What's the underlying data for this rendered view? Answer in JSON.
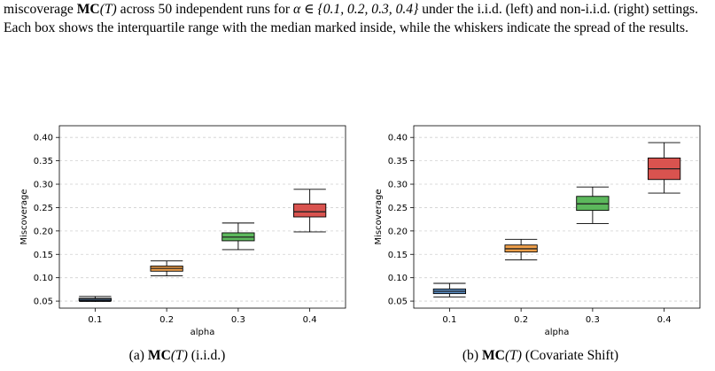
{
  "caption": {
    "part1": "miscoverage ",
    "mc_bold": "MC",
    "mc_arg": "(T)",
    "part2": " across 50 independent runs for ",
    "alpha_set": "α ∈ {0.1, 0.2, 0.3, 0.4}",
    "part3": " under the i.i.d. (left) and non-i.i.d. (right) settings. Each box shows the interquartile range with the median marked inside, while the whiskers indicate the spread of the results."
  },
  "subcaptions": [
    {
      "prefix": "(a) ",
      "bold": "MC",
      "arg": "(T)",
      "suffix": " (i.i.d.)"
    },
    {
      "prefix": "(b) ",
      "bold": "MC",
      "arg": "(T)",
      "suffix": " (Covariate Shift)"
    }
  ],
  "colors": {
    "box_fills": [
      "#5b8fc7",
      "#f0a04b",
      "#5cb85c",
      "#d9534f"
    ],
    "grid": "#d0d0d0",
    "median": "#222222"
  },
  "chart_data": [
    {
      "type": "box",
      "categories": [
        "0.1",
        "0.2",
        "0.3",
        "0.4"
      ],
      "xlabel": "alpha",
      "ylabel": "Miscoverage",
      "ylim": [
        0.035,
        0.425
      ],
      "yticks": [
        "0.05",
        "0.10",
        "0.15",
        "0.20",
        "0.25",
        "0.30",
        "0.35",
        "0.40"
      ],
      "ytick_values": [
        0.05,
        0.1,
        0.15,
        0.2,
        0.25,
        0.3,
        0.35,
        0.4
      ],
      "grid": true,
      "boxes": [
        {
          "min": 0.049,
          "q1": 0.051,
          "median": 0.054,
          "q3": 0.056,
          "max": 0.06
        },
        {
          "min": 0.104,
          "q1": 0.114,
          "median": 0.12,
          "q3": 0.125,
          "max": 0.136
        },
        {
          "min": 0.16,
          "q1": 0.179,
          "median": 0.187,
          "q3": 0.196,
          "max": 0.217
        },
        {
          "min": 0.198,
          "q1": 0.23,
          "median": 0.241,
          "q3": 0.258,
          "max": 0.289
        }
      ]
    },
    {
      "type": "box",
      "categories": [
        "0.1",
        "0.2",
        "0.3",
        "0.4"
      ],
      "xlabel": "alpha",
      "ylabel": "Miscoverage",
      "ylim": [
        0.035,
        0.425
      ],
      "yticks": [
        "0.05",
        "0.10",
        "0.15",
        "0.20",
        "0.25",
        "0.30",
        "0.35",
        "0.40"
      ],
      "ytick_values": [
        0.05,
        0.1,
        0.15,
        0.2,
        0.25,
        0.3,
        0.35,
        0.4
      ],
      "grid": true,
      "boxes": [
        {
          "min": 0.059,
          "q1": 0.066,
          "median": 0.071,
          "q3": 0.076,
          "max": 0.088
        },
        {
          "min": 0.138,
          "q1": 0.155,
          "median": 0.162,
          "q3": 0.17,
          "max": 0.182
        },
        {
          "min": 0.216,
          "q1": 0.244,
          "median": 0.258,
          "q3": 0.274,
          "max": 0.294
        },
        {
          "min": 0.281,
          "q1": 0.31,
          "median": 0.333,
          "q3": 0.356,
          "max": 0.389
        }
      ]
    }
  ]
}
